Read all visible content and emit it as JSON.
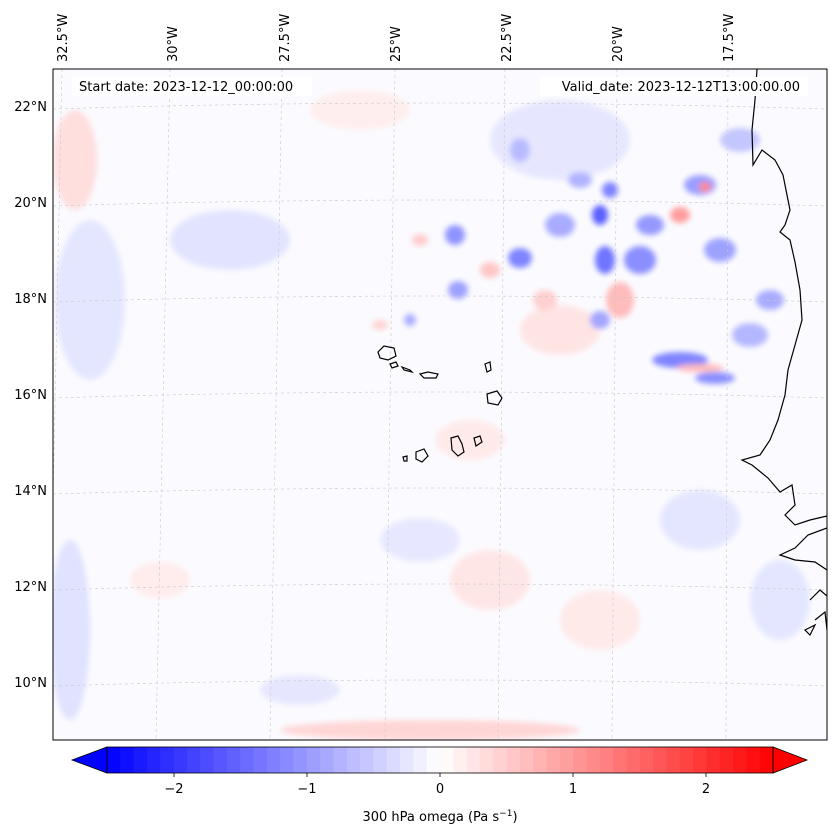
{
  "map": {
    "start_date_text": "Start date: 2023-12-12_00:00:00",
    "valid_date_text": "Valid_date: 2023-12-12T13:00:00.00",
    "lon_labels": [
      "32.5°W",
      "30°W",
      "27.5°W",
      "25°W",
      "22.5°W",
      "20°W",
      "17.5°W"
    ],
    "lat_labels": [
      "22°N",
      "20°N",
      "18°N",
      "16°N",
      "14°N",
      "12°N",
      "10°N"
    ]
  },
  "colorbar": {
    "label": "300 hPa omega (Pa s",
    "label_sup": "−1",
    "label_close": ")",
    "ticks": [
      "−2",
      "−1",
      "0",
      "1",
      "2"
    ],
    "min": -2.7,
    "max": 2.7,
    "colors": {
      "negative": "#0000ff",
      "zero": "#ffffff",
      "positive": "#ff0000"
    }
  }
}
